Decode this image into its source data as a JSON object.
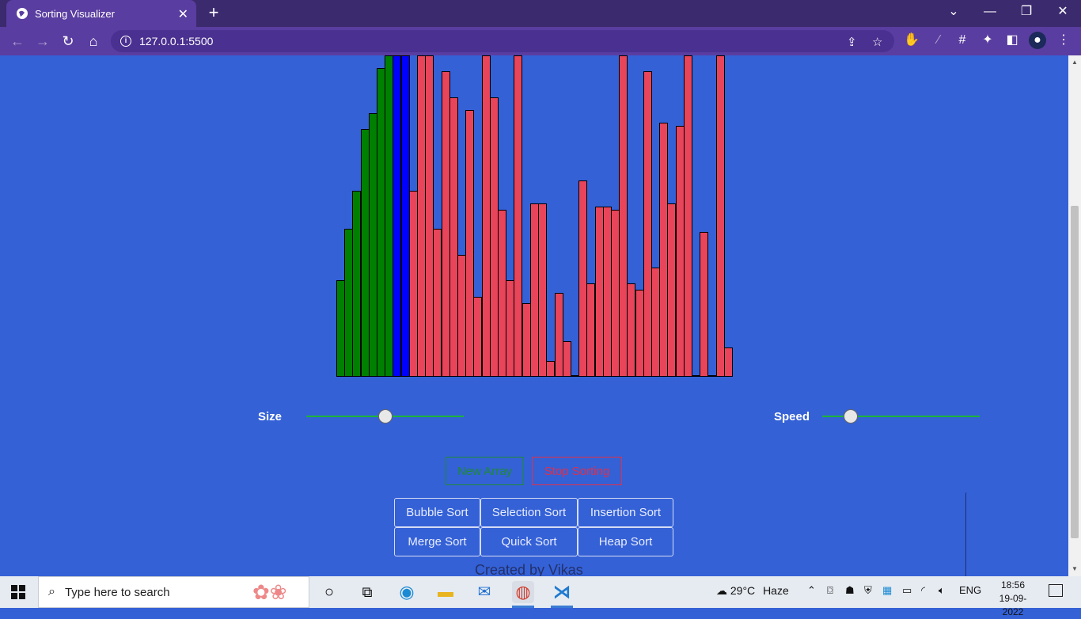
{
  "browser": {
    "tab_title": "Sorting Visualizer",
    "url": "127.0.0.1:5500"
  },
  "visualizer": {
    "colors": {
      "sorted": "#008000",
      "comparing": "#0000ff",
      "unsorted": "#e8445a"
    },
    "bar_values": [
      30,
      46,
      58,
      77,
      82,
      96,
      100,
      100,
      100,
      58,
      100,
      100,
      46,
      95,
      87,
      38,
      83,
      25,
      100,
      87,
      52,
      30,
      100,
      23,
      54,
      54,
      5,
      26,
      11,
      0.5,
      61,
      29,
      53,
      53,
      52,
      100,
      29,
      27,
      95,
      34,
      79,
      54,
      78,
      100,
      0.5,
      45,
      0.5,
      100,
      9
    ],
    "bar_states": [
      "sorted",
      "sorted",
      "sorted",
      "sorted",
      "sorted",
      "sorted",
      "sorted",
      "comparing",
      "comparing",
      "unsorted",
      "unsorted",
      "unsorted",
      "unsorted",
      "unsorted",
      "unsorted",
      "unsorted",
      "unsorted",
      "unsorted",
      "unsorted",
      "unsorted",
      "unsorted",
      "unsorted",
      "unsorted",
      "unsorted",
      "unsorted",
      "unsorted",
      "unsorted",
      "unsorted",
      "unsorted",
      "unsorted",
      "unsorted",
      "unsorted",
      "unsorted",
      "unsorted",
      "unsorted",
      "unsorted",
      "unsorted",
      "unsorted",
      "unsorted",
      "unsorted",
      "unsorted",
      "unsorted",
      "unsorted",
      "unsorted",
      "unsorted",
      "unsorted",
      "unsorted",
      "unsorted",
      "unsorted"
    ]
  },
  "controls": {
    "size_label": "Size",
    "size_value": 0.5,
    "speed_label": "Speed",
    "speed_value": 0.18,
    "new_array_label": "New Array",
    "stop_sorting_label": "Stop Sorting"
  },
  "algorithms": [
    "Bubble Sort",
    "Selection Sort",
    "Insertion Sort",
    "Merge Sort",
    "Quick Sort",
    "Heap Sort"
  ],
  "footer": {
    "credit": "Created by Vikas"
  },
  "taskbar": {
    "search_placeholder": "Type here to search",
    "weather_temp": "29°C",
    "weather_desc": "Haze",
    "language": "ENG",
    "time": "18:56",
    "date": "19-09-2022"
  }
}
